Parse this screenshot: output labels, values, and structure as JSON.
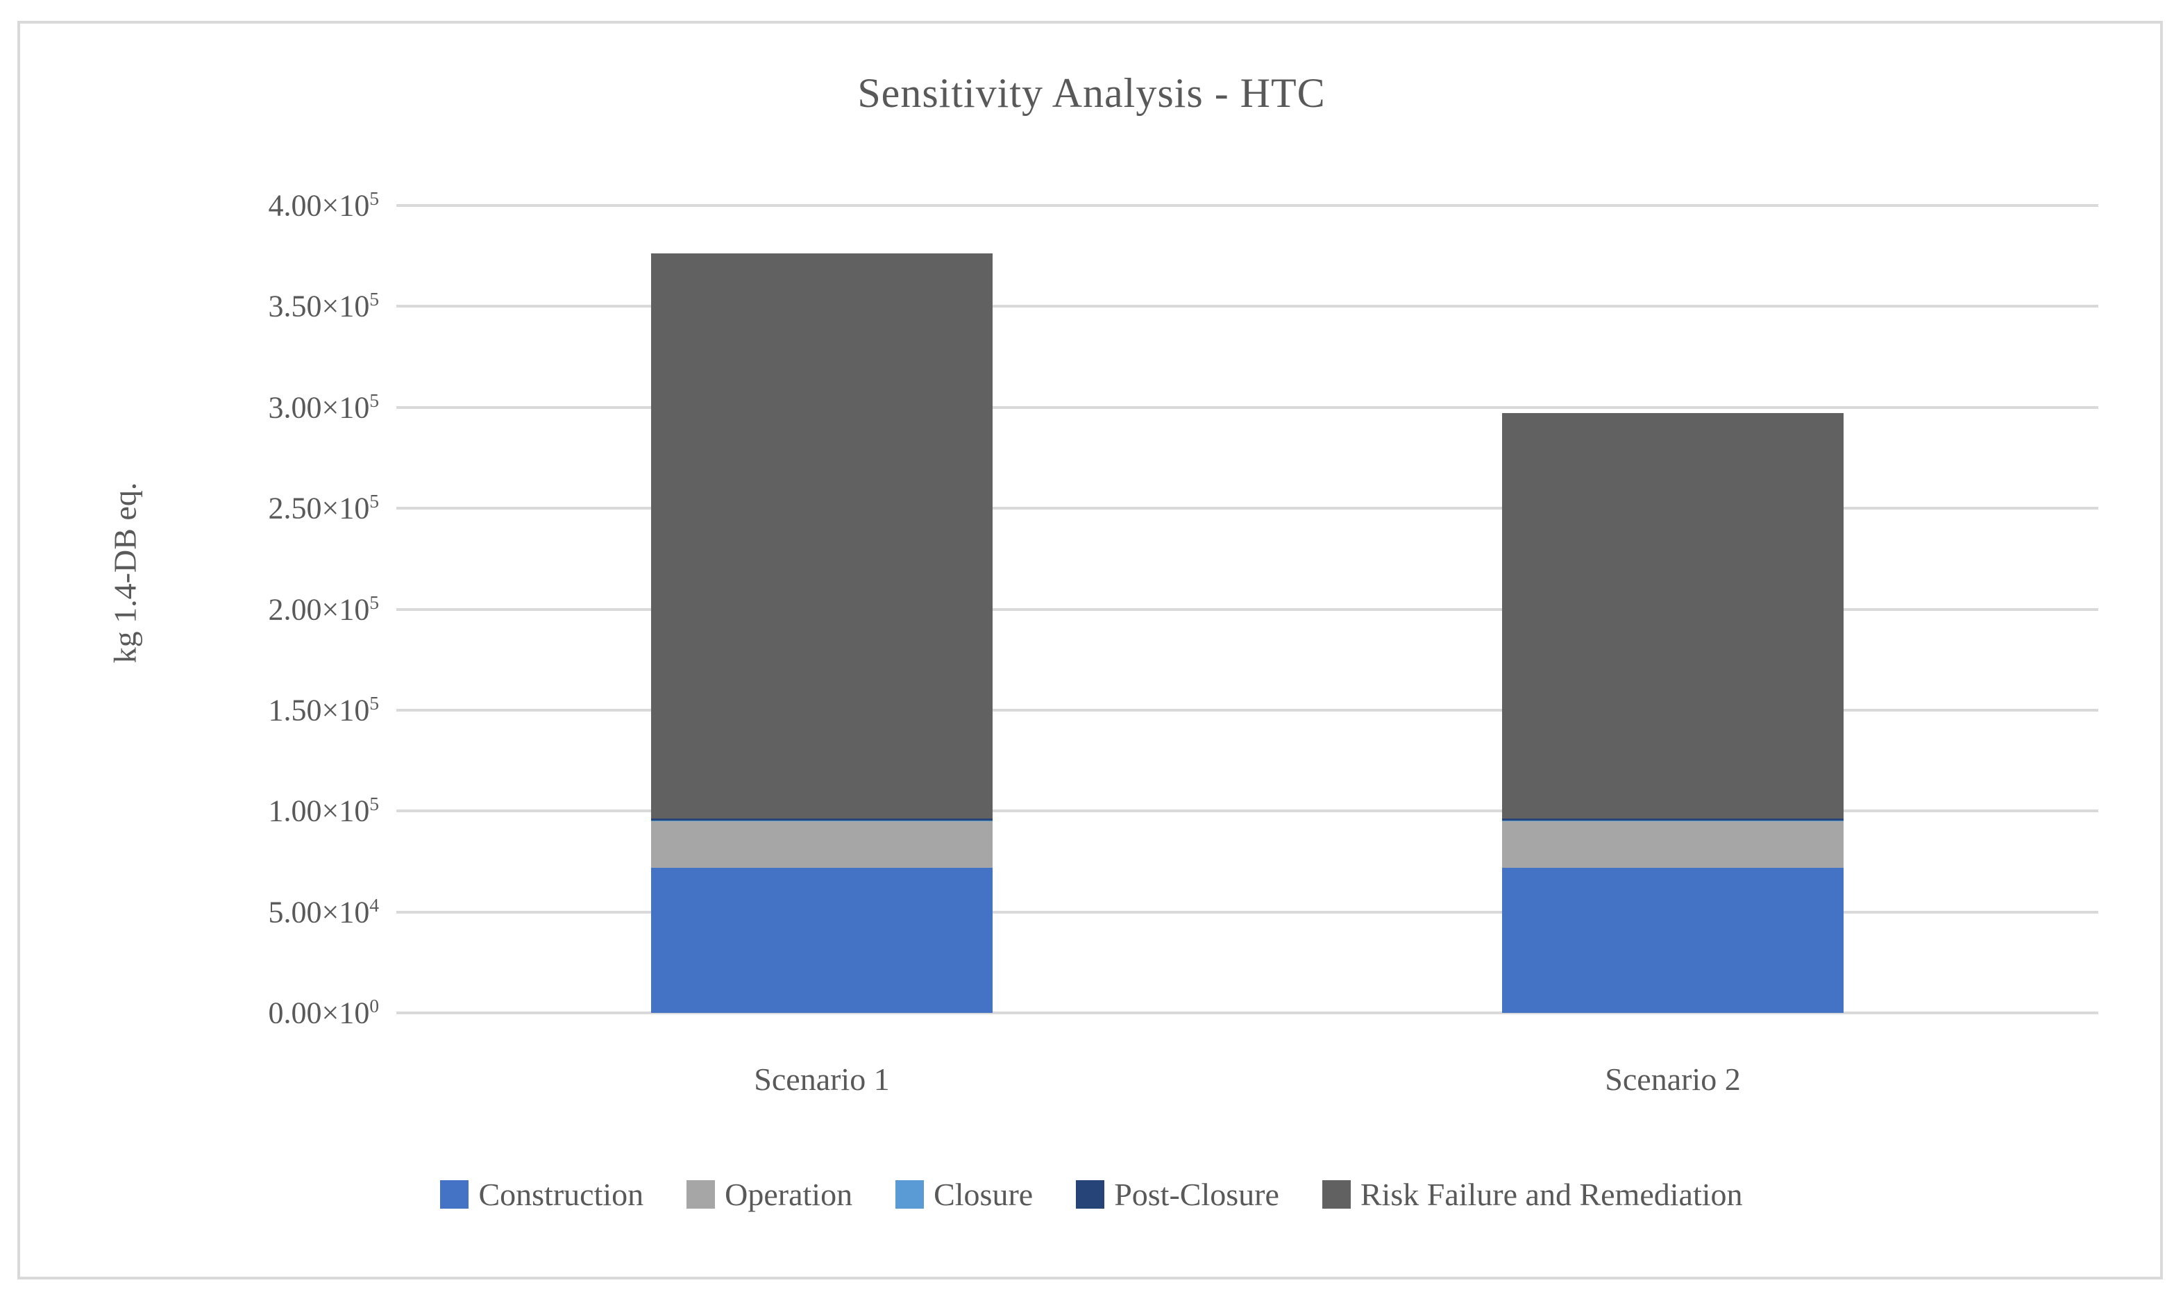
{
  "title": "Sensitivity Analysis - HTC",
  "y_axis_title": "kg 1.4-DB eq.",
  "colors": {
    "text": "#595959",
    "gridline": "#D9D9D9",
    "frame_border": "#D9D9D9",
    "background": "#FFFFFF"
  },
  "chart_data": {
    "type": "bar",
    "stacked": true,
    "title": "Sensitivity Analysis - HTC",
    "xlabel": "",
    "ylabel": "kg 1.4-DB eq.",
    "ylim": [
      0,
      400000
    ],
    "ytick_step": 50000,
    "grid": true,
    "legend_position": "bottom",
    "categories": [
      "Scenario 1",
      "Scenario 2"
    ],
    "series": [
      {
        "name": "Construction",
        "color": "#4472C4",
        "values": [
          72000,
          72000
        ]
      },
      {
        "name": "Operation",
        "color": "#A6A6A6",
        "values": [
          23000,
          23000
        ]
      },
      {
        "name": "Closure",
        "color": "#5B9BD5",
        "values": [
          200,
          200
        ]
      },
      {
        "name": "Post-Closure",
        "color": "#264478",
        "values": [
          1000,
          1000
        ]
      },
      {
        "name": "Risk Failure and Remediation",
        "color": "#616161",
        "values": [
          280000,
          201000
        ]
      }
    ],
    "totals_estimated": [
      376200,
      297200
    ],
    "y_ticks": [
      {
        "mantissa": "0.00",
        "times": "×10",
        "exp": "0",
        "value": 0
      },
      {
        "mantissa": "5.00",
        "times": "×10",
        "exp": "4",
        "value": 50000
      },
      {
        "mantissa": "1.00",
        "times": "×10",
        "exp": "5",
        "value": 100000
      },
      {
        "mantissa": "1.50",
        "times": "×10",
        "exp": "5",
        "value": 150000
      },
      {
        "mantissa": "2.00",
        "times": "×10",
        "exp": "5",
        "value": 200000
      },
      {
        "mantissa": "2.50",
        "times": "×10",
        "exp": "5",
        "value": 250000
      },
      {
        "mantissa": "3.00",
        "times": "×10",
        "exp": "5",
        "value": 300000
      },
      {
        "mantissa": "3.50",
        "times": "×10",
        "exp": "5",
        "value": 350000
      },
      {
        "mantissa": "4.00",
        "times": "×10",
        "exp": "5",
        "value": 400000
      }
    ]
  }
}
